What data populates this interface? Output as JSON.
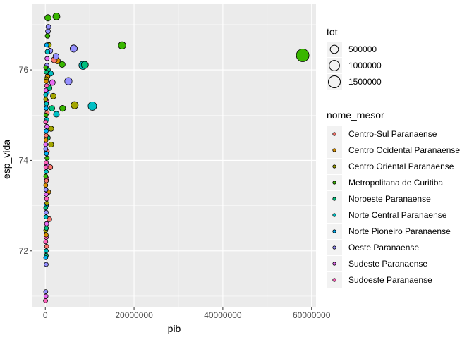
{
  "chart_data": {
    "type": "scatter",
    "xlabel": "pib",
    "ylabel": "esp_vida",
    "xlim": [
      -2900000,
      61000000
    ],
    "ylim": [
      70.75,
      77.45
    ],
    "x_ticks": [
      0,
      20000000,
      40000000,
      60000000
    ],
    "x_tick_labels": [
      "0",
      "20000000",
      "40000000",
      "60000000"
    ],
    "y_ticks": [
      72,
      74,
      76
    ],
    "y_tick_labels": [
      "72",
      "74",
      "76"
    ],
    "grid": true,
    "panel_background": "#ebebeb",
    "size_legend": {
      "title": "tot",
      "values": [
        500000,
        1000000,
        1500000
      ],
      "labels": [
        "500000",
        "1000000",
        "1500000"
      ]
    },
    "color_legend": {
      "title": "nome_mesor",
      "items": [
        {
          "name": "Centro-Sul Paranaense",
          "color": "#F8766D"
        },
        {
          "name": "Centro Ocidental Paranaense",
          "color": "#D89000"
        },
        {
          "name": "Centro Oriental Paranaense",
          "color": "#A3A500"
        },
        {
          "name": "Metropolitana de Curitiba",
          "color": "#39B600"
        },
        {
          "name": "Noroeste Paranaense",
          "color": "#00BF7D"
        },
        {
          "name": "Norte Central Paranaense",
          "color": "#00BFC4"
        },
        {
          "name": "Norte Pioneiro Paranaense",
          "color": "#00B0F6"
        },
        {
          "name": "Oeste Paranaense",
          "color": "#9590FF"
        },
        {
          "name": "Sudeste Paranaense",
          "color": "#E76BF3"
        },
        {
          "name": "Sudoeste Paranaense",
          "color": "#FF62BC"
        }
      ]
    },
    "points": [
      {
        "x": 58000000,
        "y": 76.32,
        "tot": 1750000,
        "group": 3
      },
      {
        "x": 17300000,
        "y": 76.54,
        "tot": 350000,
        "group": 3
      },
      {
        "x": 10600000,
        "y": 75.2,
        "tot": 560000,
        "group": 5
      },
      {
        "x": 8500000,
        "y": 76.1,
        "tot": 500000,
        "group": 5
      },
      {
        "x": 8900000,
        "y": 76.11,
        "tot": 300000,
        "group": 4
      },
      {
        "x": 6400000,
        "y": 76.47,
        "tot": 320000,
        "group": 7
      },
      {
        "x": 5200000,
        "y": 75.75,
        "tot": 330000,
        "group": 7
      },
      {
        "x": 6600000,
        "y": 75.22,
        "tot": 320000,
        "group": 2
      },
      {
        "x": 2500000,
        "y": 77.18,
        "tot": 290000,
        "group": 3
      },
      {
        "x": 600000,
        "y": 77.15,
        "tot": 210000,
        "group": 3
      },
      {
        "x": 3900000,
        "y": 75.15,
        "tot": 150000,
        "group": 3
      },
      {
        "x": 3800000,
        "y": 76.12,
        "tot": 160000,
        "group": 3
      },
      {
        "x": 2700000,
        "y": 76.2,
        "tot": 160000,
        "group": 1
      },
      {
        "x": 2000000,
        "y": 76.22,
        "tot": 150000,
        "group": 0
      },
      {
        "x": 2400000,
        "y": 76.3,
        "tot": 150000,
        "group": 7
      },
      {
        "x": 2500000,
        "y": 75.02,
        "tot": 140000,
        "group": 5
      },
      {
        "x": 1800000,
        "y": 75.42,
        "tot": 120000,
        "group": 2
      },
      {
        "x": 1600000,
        "y": 75.72,
        "tot": 120000,
        "group": 8
      },
      {
        "x": 1500000,
        "y": 75.15,
        "tot": 110000,
        "group": 4
      },
      {
        "x": 1300000,
        "y": 74.7,
        "tot": 100000,
        "group": 2
      },
      {
        "x": 1300000,
        "y": 74.35,
        "tot": 90000,
        "group": 2
      },
      {
        "x": 1100000,
        "y": 73.85,
        "tot": 70000,
        "group": 0
      },
      {
        "x": 900000,
        "y": 72.7,
        "tot": 60000,
        "group": 0
      },
      {
        "x": 1200000,
        "y": 75.92,
        "tot": 100000,
        "group": 5
      },
      {
        "x": 1100000,
        "y": 76.42,
        "tot": 80000,
        "group": 7
      },
      {
        "x": 900000,
        "y": 75.6,
        "tot": 90000,
        "group": 4
      },
      {
        "x": 800000,
        "y": 76.55,
        "tot": 70000,
        "group": 2
      },
      {
        "x": 700000,
        "y": 76.95,
        "tot": 60000,
        "group": 7
      },
      {
        "x": 600000,
        "y": 76.85,
        "tot": 60000,
        "group": 7
      },
      {
        "x": 500000,
        "y": 76.75,
        "tot": 50000,
        "group": 3
      },
      {
        "x": 500000,
        "y": 76.4,
        "tot": 50000,
        "group": 5
      },
      {
        "x": 600000,
        "y": 76.0,
        "tot": 60000,
        "group": 4
      },
      {
        "x": 500000,
        "y": 75.85,
        "tot": 50000,
        "group": 1
      },
      {
        "x": 400000,
        "y": 75.5,
        "tot": 40000,
        "group": 6
      },
      {
        "x": 300000,
        "y": 75.3,
        "tot": 40000,
        "group": 9
      },
      {
        "x": 300000,
        "y": 74.9,
        "tot": 35000,
        "group": 5
      },
      {
        "x": 600000,
        "y": 74.5,
        "tot": 50000,
        "group": 4
      },
      {
        "x": 400000,
        "y": 74.2,
        "tot": 40000,
        "group": 0
      },
      {
        "x": 300000,
        "y": 73.9,
        "tot": 35000,
        "group": 8
      },
      {
        "x": 300000,
        "y": 73.6,
        "tot": 30000,
        "group": 9
      },
      {
        "x": 700000,
        "y": 73.3,
        "tot": 50000,
        "group": 1
      },
      {
        "x": 200000,
        "y": 73.0,
        "tot": 30000,
        "group": 6
      },
      {
        "x": 300000,
        "y": 72.6,
        "tot": 30000,
        "group": 8
      },
      {
        "x": 200000,
        "y": 72.3,
        "tot": 25000,
        "group": 9
      },
      {
        "x": 200000,
        "y": 72.0,
        "tot": 25000,
        "group": 5
      },
      {
        "x": 200000,
        "y": 71.7,
        "tot": 20000,
        "group": 7
      },
      {
        "x": 100000,
        "y": 71.1,
        "tot": 20000,
        "group": 7
      },
      {
        "x": 150000,
        "y": 71.0,
        "tot": 20000,
        "group": 8
      },
      {
        "x": 50000,
        "y": 70.9,
        "tot": 20000,
        "group": 9
      },
      {
        "x": 200000,
        "y": 71.9,
        "tot": 25000,
        "group": 4
      },
      {
        "x": 300000,
        "y": 72.1,
        "tot": 25000,
        "group": 0
      },
      {
        "x": 100000,
        "y": 72.45,
        "tot": 20000,
        "group": 2
      },
      {
        "x": 200000,
        "y": 72.85,
        "tot": 25000,
        "group": 7
      },
      {
        "x": 300000,
        "y": 73.15,
        "tot": 25000,
        "group": 9
      },
      {
        "x": 100000,
        "y": 73.45,
        "tot": 20000,
        "group": 1
      },
      {
        "x": 200000,
        "y": 73.75,
        "tot": 25000,
        "group": 5
      },
      {
        "x": 400000,
        "y": 74.05,
        "tot": 30000,
        "group": 3
      },
      {
        "x": 100000,
        "y": 74.35,
        "tot": 20000,
        "group": 8
      },
      {
        "x": 200000,
        "y": 74.65,
        "tot": 25000,
        "group": 6
      },
      {
        "x": 400000,
        "y": 75.05,
        "tot": 30000,
        "group": 0
      },
      {
        "x": 100000,
        "y": 75.35,
        "tot": 20000,
        "group": 2
      },
      {
        "x": 300000,
        "y": 75.65,
        "tot": 25000,
        "group": 9
      },
      {
        "x": 200000,
        "y": 75.95,
        "tot": 25000,
        "group": 4
      },
      {
        "x": 400000,
        "y": 76.25,
        "tot": 30000,
        "group": 8
      },
      {
        "x": 300000,
        "y": 76.55,
        "tot": 25000,
        "group": 6
      },
      {
        "x": 100000,
        "y": 72.2,
        "tot": 20000,
        "group": 9
      },
      {
        "x": 250000,
        "y": 72.5,
        "tot": 20000,
        "group": 4
      },
      {
        "x": 150000,
        "y": 72.75,
        "tot": 20000,
        "group": 5
      },
      {
        "x": 350000,
        "y": 73.05,
        "tot": 25000,
        "group": 2
      },
      {
        "x": 150000,
        "y": 73.35,
        "tot": 20000,
        "group": 7
      },
      {
        "x": 250000,
        "y": 73.55,
        "tot": 20000,
        "group": 0
      },
      {
        "x": 150000,
        "y": 73.85,
        "tot": 20000,
        "group": 9
      },
      {
        "x": 250000,
        "y": 74.15,
        "tot": 25000,
        "group": 6
      },
      {
        "x": 150000,
        "y": 74.45,
        "tot": 20000,
        "group": 1
      },
      {
        "x": 350000,
        "y": 74.75,
        "tot": 25000,
        "group": 8
      },
      {
        "x": 150000,
        "y": 75.0,
        "tot": 20000,
        "group": 3
      },
      {
        "x": 250000,
        "y": 75.25,
        "tot": 25000,
        "group": 5
      },
      {
        "x": 150000,
        "y": 75.55,
        "tot": 20000,
        "group": 8
      },
      {
        "x": 250000,
        "y": 75.8,
        "tot": 25000,
        "group": 2
      },
      {
        "x": 350000,
        "y": 76.1,
        "tot": 25000,
        "group": 7
      },
      {
        "x": 100000,
        "y": 71.85,
        "tot": 20000,
        "group": 6
      },
      {
        "x": 200000,
        "y": 72.35,
        "tot": 20000,
        "group": 1
      },
      {
        "x": 100000,
        "y": 72.95,
        "tot": 20000,
        "group": 4
      },
      {
        "x": 200000,
        "y": 73.25,
        "tot": 20000,
        "group": 8
      },
      {
        "x": 100000,
        "y": 73.65,
        "tot": 20000,
        "group": 3
      },
      {
        "x": 200000,
        "y": 73.95,
        "tot": 20000,
        "group": 9
      },
      {
        "x": 100000,
        "y": 74.25,
        "tot": 20000,
        "group": 7
      },
      {
        "x": 200000,
        "y": 74.55,
        "tot": 20000,
        "group": 0
      },
      {
        "x": 100000,
        "y": 74.85,
        "tot": 20000,
        "group": 9
      },
      {
        "x": 200000,
        "y": 75.15,
        "tot": 20000,
        "group": 6
      },
      {
        "x": 100000,
        "y": 75.45,
        "tot": 20000,
        "group": 5
      },
      {
        "x": 200000,
        "y": 75.75,
        "tot": 20000,
        "group": 1
      },
      {
        "x": 100000,
        "y": 76.05,
        "tot": 20000,
        "group": 3
      }
    ]
  }
}
